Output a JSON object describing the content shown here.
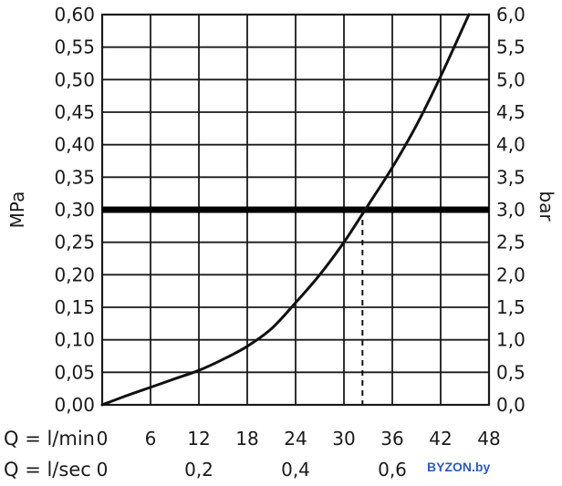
{
  "chart_data": {
    "type": "line",
    "title": "",
    "left_axis": {
      "label": "MPa",
      "ylim": [
        0,
        0.6
      ],
      "ticks": [
        "0,00",
        "0,05",
        "0,10",
        "0,15",
        "0,20",
        "0,25",
        "0,30",
        "0,35",
        "0,40",
        "0,45",
        "0,50",
        "0,55",
        "0,60"
      ]
    },
    "right_axis": {
      "label": "bar",
      "ylim": [
        0,
        6
      ],
      "ticks": [
        "0,0",
        "0,5",
        "1,0",
        "1,5",
        "2,0",
        "2,5",
        "3,0",
        "3,5",
        "4,0",
        "4,5",
        "5,0",
        "5,5",
        "6,0"
      ]
    },
    "x_axis": {
      "xlim": [
        0,
        48
      ],
      "row1_label": "Q = l/min",
      "row1_ticks": [
        {
          "x": 0,
          "label": "0"
        },
        {
          "x": 6,
          "label": "6"
        },
        {
          "x": 12,
          "label": "12"
        },
        {
          "x": 18,
          "label": "18"
        },
        {
          "x": 24,
          "label": "24"
        },
        {
          "x": 30,
          "label": "30"
        },
        {
          "x": 36,
          "label": "36"
        },
        {
          "x": 42,
          "label": "42"
        },
        {
          "x": 48,
          "label": "48"
        }
      ],
      "row2_label": "Q = l/sec",
      "row2_ticks": [
        {
          "x": 0,
          "label": "0"
        },
        {
          "x": 12,
          "label": "0,2"
        },
        {
          "x": 24,
          "label": "0,4"
        },
        {
          "x": 36,
          "label": "0,6"
        }
      ]
    },
    "grid": true,
    "series": [
      {
        "x": [
          0,
          3,
          6,
          9,
          12,
          15,
          18,
          21,
          24,
          27,
          30,
          33,
          36,
          39,
          42,
          45.5
        ],
        "y": [
          0,
          0.014,
          0.027,
          0.04,
          0.053,
          0.07,
          0.09,
          0.117,
          0.157,
          0.2,
          0.25,
          0.307,
          0.365,
          0.43,
          0.505,
          0.6
        ]
      }
    ],
    "reference_line": {
      "y": 0.3
    },
    "marker_x": 32.3,
    "colors": {
      "curve": "#111111",
      "grid": "#1a1a1a",
      "reference": "#000000"
    }
  },
  "watermark": {
    "text": "BYZON.by"
  }
}
